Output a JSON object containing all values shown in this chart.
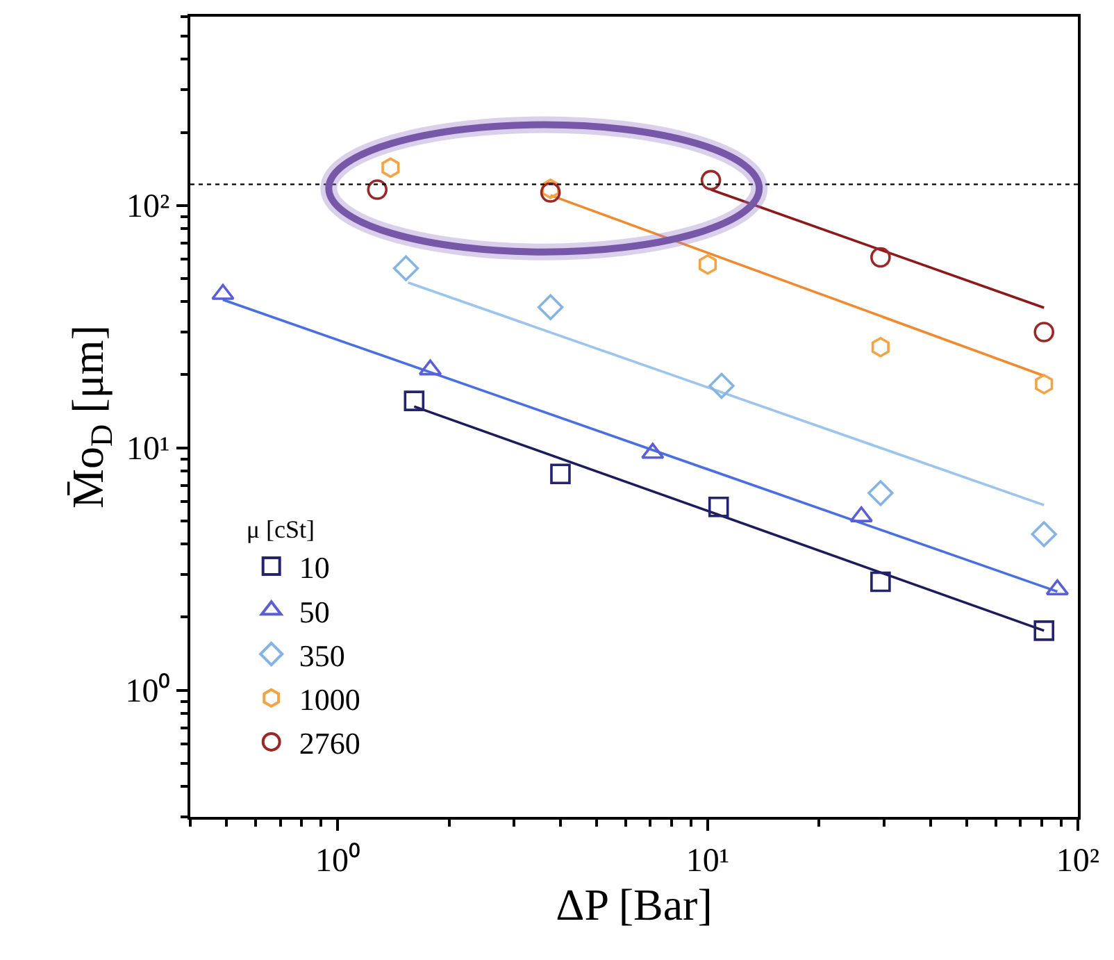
{
  "chart_data": {
    "type": "scatter",
    "xlabel": "ΔP [Bar]",
    "ylabel": "M̄o$_{D}$ [μm]",
    "legend_title": "μ [cSt]",
    "legend": "bottom left",
    "log": "xy",
    "xlim": [
      0.4,
      100
    ],
    "ylim": [
      0.3,
      600
    ],
    "xticks": [
      {
        "value": 1,
        "label": "10⁰"
      },
      {
        "value": 10,
        "label": "10¹"
      },
      {
        "value": 100,
        "label": "10²"
      }
    ],
    "yticks": [
      {
        "value": 1,
        "label": "10⁰"
      },
      {
        "value": 10,
        "label": "10¹"
      },
      {
        "value": 100,
        "label": "10²"
      }
    ],
    "ref_lines": [
      {
        "axis": "y",
        "value": 122,
        "label": null,
        "color": "#000000",
        "line_style": "dotted"
      }
    ],
    "series": [
      {
        "name": "10",
        "marker": "square",
        "color": "#23236e",
        "x": [
          1.61,
          4.0,
          10.7,
          29.3,
          81
        ],
        "values": [
          15.6,
          7.8,
          5.7,
          2.8,
          1.76
        ]
      },
      {
        "name": "50",
        "marker": "triangle",
        "color": "#5a5fd6",
        "x": [
          0.49,
          1.78,
          7.1,
          26,
          88
        ],
        "values": [
          43,
          21,
          9.5,
          5.2,
          2.6
        ]
      },
      {
        "name": "350",
        "marker": "diamond",
        "color": "#86b4e2",
        "x": [
          1.53,
          3.76,
          10.9,
          29.3,
          81
        ],
        "values": [
          55,
          38,
          18,
          6.5,
          4.4
        ]
      },
      {
        "name": "1000",
        "color": "#f2a444",
        "x": [
          1.39,
          3.76,
          10,
          29.3,
          81
        ],
        "values": [
          143,
          117,
          57,
          26,
          18.3
        ]
      },
      {
        "name": "2760",
        "marker": "circle",
        "color": "#9a2828",
        "x": [
          1.28,
          3.76,
          10.2,
          29.3,
          81
        ],
        "values": [
          116,
          113,
          127,
          61,
          30
        ]
      },
      {
        "type": "line",
        "marker": "none",
        "line_style": "solid",
        "color": "#1c1c5c",
        "x": [
          1.61,
          81
        ],
        "values": [
          14.8,
          1.76
        ]
      },
      {
        "type": "line",
        "marker": "none",
        "line_style": "solid",
        "color": "#4a6fe0",
        "x": [
          0.49,
          88
        ],
        "values": [
          40.8,
          2.55
        ]
      },
      {
        "type": "line",
        "marker": "none",
        "line_style": "solid",
        "color": "#9cc4ec",
        "x": [
          1.55,
          81
        ],
        "values": [
          48,
          5.8
        ]
      },
      {
        "type": "line",
        "marker": "none",
        "line_style": "solid",
        "color": "#f08a30",
        "x": [
          3.76,
          81
        ],
        "values": [
          110,
          19.8
        ]
      },
      {
        "type": "line",
        "marker": "none",
        "line_style": "solid",
        "color": "#8b1a1a",
        "x": [
          10.2,
          81
        ],
        "values": [
          116,
          37.8
        ]
      }
    ]
  }
}
